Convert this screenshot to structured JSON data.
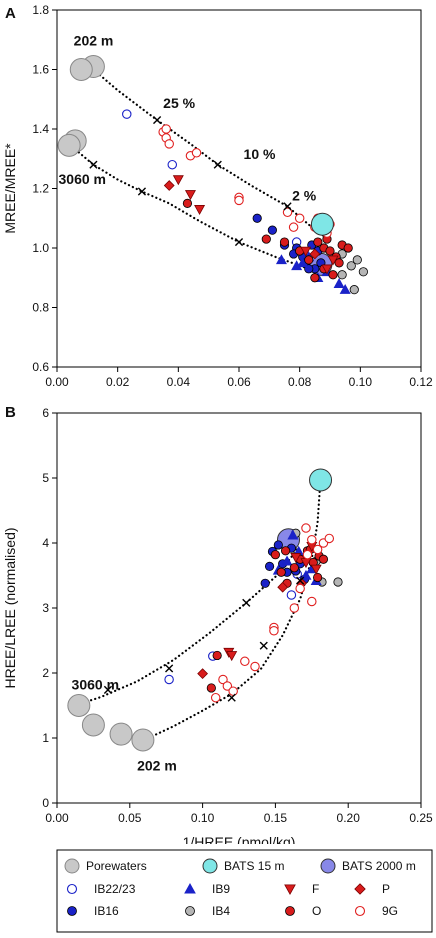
{
  "legend": {
    "items": [
      {
        "label": "Porewaters",
        "marker": "circle-lg",
        "fill": "#c8c8c8",
        "stroke": "#888888"
      },
      {
        "label": "BATS 15 m",
        "marker": "circle-lg",
        "fill": "#7fe6e6",
        "stroke": "#333333"
      },
      {
        "label": "BATS 2000 m",
        "marker": "circle-lg",
        "fill": "#8888e8",
        "stroke": "#333333"
      },
      {
        "label": "IB22/23",
        "marker": "circle-open",
        "fill": "none",
        "stroke": "#1a22c8"
      },
      {
        "label": "IB9",
        "marker": "triangle-up",
        "fill": "#1a22c8",
        "stroke": "#1a22c8"
      },
      {
        "label": "F",
        "marker": "triangle-down",
        "fill": "#d81c1c",
        "stroke": "#7a0000"
      },
      {
        "label": "P",
        "marker": "diamond",
        "fill": "#d81c1c",
        "stroke": "#7a0000"
      },
      {
        "label": "IB16",
        "marker": "circle",
        "fill": "#1a22c8",
        "stroke": "#000000"
      },
      {
        "label": "IB4",
        "marker": "circle",
        "fill": "#b5b5b5",
        "stroke": "#000000"
      },
      {
        "label": "O",
        "marker": "circle",
        "fill": "#d81c1c",
        "stroke": "#000000"
      },
      {
        "label": "9G",
        "marker": "circle-open",
        "fill": "none",
        "stroke": "#e02020"
      }
    ]
  },
  "chart_data": [
    {
      "panel": "A",
      "type": "scatter",
      "xlabel": "1/MREE (pmol/kg)",
      "ylabel": "MREE/MREE*",
      "xlim": [
        0,
        0.12
      ],
      "ylim": [
        0.6,
        1.8
      ],
      "xticks": [
        "0.00",
        "0.02",
        "0.04",
        "0.06",
        "0.08",
        "0.10",
        "0.12"
      ],
      "yticks": [
        "0.6",
        "0.8",
        "1.0",
        "1.2",
        "1.4",
        "1.6",
        "1.8"
      ],
      "annotations": [
        {
          "text": "202 m",
          "x": 0.0055,
          "y": 1.68
        },
        {
          "text": "25 %",
          "x": 0.035,
          "y": 1.47
        },
        {
          "text": "10 %",
          "x": 0.0615,
          "y": 1.3
        },
        {
          "text": "3060 m",
          "x": 0.0005,
          "y": 1.215
        },
        {
          "text": "2 %",
          "x": 0.0775,
          "y": 1.16
        }
      ],
      "mixing_lines": [
        {
          "points": [
            [
              0.012,
              1.6
            ],
            [
              0.02,
              1.53
            ],
            [
              0.033,
              1.43
            ],
            [
              0.044,
              1.35
            ],
            [
              0.053,
              1.28
            ],
            [
              0.064,
              1.21
            ],
            [
              0.076,
              1.14
            ],
            [
              0.084,
              1.07
            ],
            [
              0.088,
              1.04
            ]
          ],
          "crosses": [
            [
              0.033,
              1.43
            ],
            [
              0.053,
              1.28
            ],
            [
              0.076,
              1.14
            ]
          ]
        },
        {
          "points": [
            [
              0.005,
              1.34
            ],
            [
              0.012,
              1.28
            ],
            [
              0.02,
              1.23
            ],
            [
              0.028,
              1.19
            ],
            [
              0.037,
              1.15
            ],
            [
              0.047,
              1.09
            ],
            [
              0.06,
              1.02
            ],
            [
              0.072,
              0.97
            ],
            [
              0.083,
              0.93
            ],
            [
              0.088,
              0.92
            ]
          ],
          "crosses": [
            [
              0.012,
              1.28
            ],
            [
              0.028,
              1.19
            ],
            [
              0.06,
              1.02
            ]
          ]
        }
      ],
      "series": [
        {
          "name": "Porewaters",
          "points": [
            [
              0.012,
              1.61
            ],
            [
              0.008,
              1.6
            ],
            [
              0.006,
              1.36
            ],
            [
              0.004,
              1.345
            ]
          ]
        },
        {
          "name": "BATS 15 m",
          "points": [
            [
              0.0875,
              1.08
            ]
          ]
        },
        {
          "name": "BATS 2000 m",
          "points": [
            [
              0.087,
              0.945
            ]
          ]
        },
        {
          "name": "IB22/23",
          "points": [
            [
              0.023,
              1.45
            ],
            [
              0.038,
              1.28
            ],
            [
              0.079,
              1.02
            ]
          ]
        },
        {
          "name": "IB9",
          "points": [
            [
              0.074,
              0.96
            ],
            [
              0.081,
              0.95
            ],
            [
              0.086,
              0.9
            ],
            [
              0.089,
              0.92
            ],
            [
              0.093,
              0.88
            ],
            [
              0.095,
              0.86
            ],
            [
              0.083,
              0.97
            ],
            [
              0.079,
              0.94
            ]
          ]
        },
        {
          "name": "F",
          "points": [
            [
              0.04,
              1.23
            ],
            [
              0.044,
              1.18
            ],
            [
              0.047,
              1.13
            ],
            [
              0.082,
              0.99
            ],
            [
              0.089,
              0.93
            ],
            [
              0.091,
              0.96
            ]
          ]
        },
        {
          "name": "P",
          "points": [
            [
              0.037,
              1.21
            ],
            [
              0.085,
              0.98
            ]
          ]
        },
        {
          "name": "IB16",
          "points": [
            [
              0.066,
              1.1
            ],
            [
              0.071,
              1.06
            ],
            [
              0.075,
              1.01
            ],
            [
              0.079,
              1.0
            ],
            [
              0.078,
              0.98
            ],
            [
              0.081,
              0.97
            ],
            [
              0.082,
              0.95
            ],
            [
              0.085,
              0.93
            ],
            [
              0.083,
              0.93
            ],
            [
              0.087,
              0.95
            ],
            [
              0.086,
              0.99
            ],
            [
              0.084,
              1.01
            ]
          ]
        },
        {
          "name": "IB4",
          "points": [
            [
              0.094,
              0.98
            ],
            [
              0.097,
              0.94
            ],
            [
              0.099,
              0.96
            ],
            [
              0.101,
              0.92
            ],
            [
              0.098,
              0.86
            ],
            [
              0.094,
              0.91
            ]
          ]
        },
        {
          "name": "O",
          "points": [
            [
              0.043,
              1.15
            ],
            [
              0.069,
              1.03
            ],
            [
              0.075,
              1.02
            ],
            [
              0.08,
              0.99
            ],
            [
              0.083,
              0.96
            ],
            [
              0.086,
              1.02
            ],
            [
              0.088,
              1.0
            ],
            [
              0.09,
              0.99
            ],
            [
              0.092,
              0.97
            ],
            [
              0.094,
              1.01
            ],
            [
              0.096,
              1.0
            ],
            [
              0.088,
              0.93
            ],
            [
              0.085,
              0.9
            ],
            [
              0.091,
              0.91
            ],
            [
              0.089,
              1.03
            ],
            [
              0.093,
              0.95
            ]
          ]
        },
        {
          "name": "9G",
          "points": [
            [
              0.035,
              1.39
            ],
            [
              0.036,
              1.37
            ],
            [
              0.037,
              1.35
            ],
            [
              0.036,
              1.4
            ],
            [
              0.044,
              1.31
            ],
            [
              0.046,
              1.32
            ],
            [
              0.06,
              1.17
            ],
            [
              0.06,
              1.16
            ],
            [
              0.076,
              1.12
            ],
            [
              0.08,
              1.1
            ],
            [
              0.078,
              1.07
            ],
            [
              0.085,
              1.07
            ],
            [
              0.086,
              1.1
            ],
            [
              0.089,
              1.05
            ],
            [
              0.09,
              1.08
            ],
            [
              0.087,
              1.09
            ]
          ]
        }
      ]
    },
    {
      "panel": "B",
      "type": "scatter",
      "xlabel": "1/HREE (pmol/kg)",
      "ylabel": "HREE/LREE (normalised)",
      "xlim": [
        0,
        0.25
      ],
      "ylim": [
        0,
        6
      ],
      "xticks": [
        "0.00",
        "0.05",
        "0.10",
        "0.15",
        "0.20",
        "0.25"
      ],
      "yticks": [
        "0",
        "1",
        "2",
        "3",
        "4",
        "5",
        "6"
      ],
      "annotations": [
        {
          "text": "3060 m",
          "x": 0.01,
          "y": 1.75
        },
        {
          "text": "202 m",
          "x": 0.055,
          "y": 0.5
        }
      ],
      "mixing_lines": [
        {
          "points": [
            [
              0.015,
              1.52
            ],
            [
              0.03,
              1.63
            ],
            [
              0.055,
              1.87
            ],
            [
              0.08,
              2.2
            ],
            [
              0.105,
              2.62
            ],
            [
              0.13,
              3.08
            ],
            [
              0.15,
              3.48
            ],
            [
              0.163,
              3.84
            ],
            [
              0.165,
              3.95
            ]
          ],
          "crosses": [
            [
              0.035,
              1.74
            ],
            [
              0.077,
              2.07
            ],
            [
              0.13,
              3.08
            ]
          ]
        },
        {
          "points": [
            [
              0.06,
              0.97
            ],
            [
              0.08,
              1.18
            ],
            [
              0.1,
              1.42
            ],
            [
              0.12,
              1.68
            ],
            [
              0.14,
              2.06
            ],
            [
              0.155,
              2.58
            ],
            [
              0.167,
              3.14
            ],
            [
              0.175,
              3.76
            ],
            [
              0.179,
              4.32
            ],
            [
              0.181,
              4.98
            ]
          ],
          "crosses": [
            [
              0.12,
              1.62
            ],
            [
              0.142,
              2.42
            ],
            [
              0.167,
              3.42
            ]
          ]
        }
      ],
      "series": [
        {
          "name": "Porewaters",
          "points": [
            [
              0.015,
              1.5
            ],
            [
              0.025,
              1.2
            ],
            [
              0.044,
              1.06
            ],
            [
              0.059,
              0.97
            ]
          ]
        },
        {
          "name": "BATS 15 m",
          "points": [
            [
              0.181,
              4.97
            ]
          ]
        },
        {
          "name": "BATS 2000 m",
          "points": [
            [
              0.159,
              4.05
            ]
          ]
        },
        {
          "name": "IB22/23",
          "points": [
            [
              0.077,
              1.9
            ],
            [
              0.107,
              2.26
            ],
            [
              0.161,
              3.2
            ],
            [
              0.165,
              3.52
            ]
          ]
        },
        {
          "name": "IB9",
          "points": [
            [
              0.152,
              3.58
            ],
            [
              0.158,
              3.72
            ],
            [
              0.162,
              4.12
            ],
            [
              0.166,
              3.87
            ],
            [
              0.171,
              3.5
            ],
            [
              0.175,
              3.6
            ],
            [
              0.178,
              3.42
            ]
          ]
        },
        {
          "name": "F",
          "points": [
            [
              0.118,
              2.32
            ],
            [
              0.12,
              2.27
            ],
            [
              0.175,
              3.95
            ],
            [
              0.178,
              3.6
            ],
            [
              0.171,
              3.7
            ],
            [
              0.164,
              3.78
            ]
          ]
        },
        {
          "name": "P",
          "points": [
            [
              0.1,
              1.99
            ],
            [
              0.155,
              3.32
            ],
            [
              0.168,
              3.38
            ]
          ]
        },
        {
          "name": "IB16",
          "points": [
            [
              0.143,
              3.38
            ],
            [
              0.146,
              3.64
            ],
            [
              0.148,
              3.87
            ],
            [
              0.152,
              3.97
            ],
            [
              0.155,
              3.68
            ],
            [
              0.158,
              3.55
            ],
            [
              0.161,
              3.92
            ],
            [
              0.164,
              3.57
            ],
            [
              0.167,
              3.68
            ],
            [
              0.17,
              3.44
            ]
          ]
        },
        {
          "name": "IB4",
          "points": [
            [
              0.164,
              4.15
            ],
            [
              0.178,
              3.72
            ],
            [
              0.182,
              3.4
            ],
            [
              0.193,
              3.4
            ]
          ]
        },
        {
          "name": "O",
          "points": [
            [
              0.106,
              1.77
            ],
            [
              0.11,
              2.27
            ],
            [
              0.15,
              3.82
            ],
            [
              0.154,
              3.55
            ],
            [
              0.157,
              3.88
            ],
            [
              0.163,
              3.62
            ],
            [
              0.167,
              3.75
            ],
            [
              0.172,
              3.88
            ],
            [
              0.176,
              3.7
            ],
            [
              0.18,
              3.8
            ],
            [
              0.183,
              3.75
            ],
            [
              0.179,
              3.47
            ],
            [
              0.174,
              3.9
            ],
            [
              0.158,
              3.38
            ]
          ]
        },
        {
          "name": "9G",
          "points": [
            [
              0.109,
              1.62
            ],
            [
              0.114,
              1.9
            ],
            [
              0.117,
              1.8
            ],
            [
              0.121,
              1.72
            ],
            [
              0.129,
              2.18
            ],
            [
              0.136,
              2.1
            ],
            [
              0.149,
              2.7
            ],
            [
              0.149,
              2.65
            ],
            [
              0.163,
              3.0
            ],
            [
              0.167,
              3.3
            ],
            [
              0.171,
              4.23
            ],
            [
              0.175,
              4.05
            ],
            [
              0.179,
              3.9
            ],
            [
              0.183,
              4.0
            ],
            [
              0.187,
              4.07
            ],
            [
              0.175,
              3.1
            ],
            [
              0.172,
              3.82
            ]
          ]
        }
      ]
    }
  ]
}
